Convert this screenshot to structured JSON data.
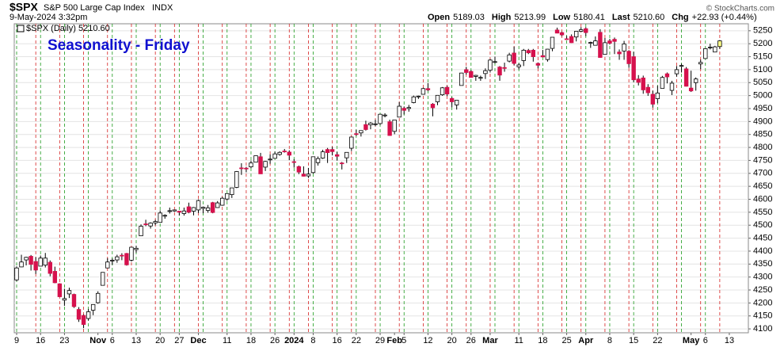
{
  "header": {
    "symbol": "$SPX",
    "name": "S&P 500 Large Cap Index",
    "exchange": "INDX",
    "timestamp": "9-May-2024 3:32pm",
    "stats": [
      {
        "label": "Open",
        "value": "5189.03"
      },
      {
        "label": "High",
        "value": "5213.99"
      },
      {
        "label": "Low",
        "value": "5180.41"
      },
      {
        "label": "Last",
        "value": "5210.60"
      },
      {
        "label": "Chg",
        "value": "+22.93 (+0.44%)"
      }
    ],
    "copyright": "© StockCharts.com"
  },
  "chart_data": {
    "type": "candlestick",
    "title": "Seasonality - Friday",
    "legend": "$SPX (Daily) 5210.60",
    "up_color": "#ffffff",
    "down_color": "#d6114d",
    "wick_color": "#000000",
    "highlight_last_color": "#ffff88",
    "week_start_color": "#1a9a1a",
    "week_end_color": "#d62020",
    "grid": true,
    "ylim": [
      4085,
      5277
    ],
    "yticks": [
      4100,
      4150,
      4200,
      4250,
      4300,
      4350,
      4400,
      4450,
      4500,
      4550,
      4600,
      4650,
      4700,
      4750,
      4800,
      4850,
      4900,
      4950,
      5000,
      5050,
      5100,
      5150,
      5200,
      5250
    ],
    "xticks": [
      {
        "value": "2023-10-09",
        "label": "9"
      },
      {
        "value": "2023-10-16",
        "label": "16"
      },
      {
        "value": "2023-10-23",
        "label": "23"
      },
      {
        "value": "2023-11-01",
        "label": "Nov"
      },
      {
        "value": "2023-11-06",
        "label": "6"
      },
      {
        "value": "2023-11-13",
        "label": "13"
      },
      {
        "value": "2023-11-20",
        "label": "20"
      },
      {
        "value": "2023-11-27",
        "label": "27"
      },
      {
        "value": "2023-12-01",
        "label": "Dec"
      },
      {
        "value": "2023-12-11",
        "label": "11"
      },
      {
        "value": "2023-12-18",
        "label": "18"
      },
      {
        "value": "2023-12-26",
        "label": "26"
      },
      {
        "value": "2024-01-02",
        "label": "2024"
      },
      {
        "value": "2024-01-08",
        "label": "8"
      },
      {
        "value": "2024-01-16",
        "label": "16"
      },
      {
        "value": "2024-01-22",
        "label": "22"
      },
      {
        "value": "2024-01-29",
        "label": "29"
      },
      {
        "value": "2024-02-01",
        "label": "Feb"
      },
      {
        "value": "2024-02-05",
        "label": "5"
      },
      {
        "value": "2024-02-12",
        "label": "12"
      },
      {
        "value": "2024-02-20",
        "label": "20"
      },
      {
        "value": "2024-02-26",
        "label": "26"
      },
      {
        "value": "2024-03-01",
        "label": "Mar"
      },
      {
        "value": "2024-03-11",
        "label": "11"
      },
      {
        "value": "2024-03-18",
        "label": "18"
      },
      {
        "value": "2024-03-25",
        "label": "25"
      },
      {
        "value": "2024-04-01",
        "label": "Apr"
      },
      {
        "value": "2024-04-08",
        "label": "8"
      },
      {
        "value": "2024-04-15",
        "label": "15"
      },
      {
        "value": "2024-04-22",
        "label": "22"
      },
      {
        "value": "2024-05-01",
        "label": "May"
      },
      {
        "value": "2024-05-06",
        "label": "6"
      },
      {
        "value": "2024-05-13",
        "label": "13"
      }
    ],
    "x": [
      "2023-10-09",
      "2023-10-10",
      "2023-10-11",
      "2023-10-12",
      "2023-10-13",
      "2023-10-16",
      "2023-10-17",
      "2023-10-18",
      "2023-10-19",
      "2023-10-20",
      "2023-10-23",
      "2023-10-24",
      "2023-10-25",
      "2023-10-26",
      "2023-10-27",
      "2023-10-30",
      "2023-10-31",
      "2023-11-01",
      "2023-11-02",
      "2023-11-03",
      "2023-11-06",
      "2023-11-07",
      "2023-11-08",
      "2023-11-09",
      "2023-11-10",
      "2023-11-13",
      "2023-11-14",
      "2023-11-15",
      "2023-11-16",
      "2023-11-17",
      "2023-11-20",
      "2023-11-21",
      "2023-11-22",
      "2023-11-24",
      "2023-11-27",
      "2023-11-28",
      "2023-11-29",
      "2023-11-30",
      "2023-12-01",
      "2023-12-04",
      "2023-12-05",
      "2023-12-06",
      "2023-12-07",
      "2023-12-08",
      "2023-12-11",
      "2023-12-12",
      "2023-12-13",
      "2023-12-14",
      "2023-12-15",
      "2023-12-18",
      "2023-12-19",
      "2023-12-20",
      "2023-12-21",
      "2023-12-22",
      "2023-12-26",
      "2023-12-27",
      "2023-12-28",
      "2023-12-29",
      "2024-01-02",
      "2024-01-03",
      "2024-01-04",
      "2024-01-05",
      "2024-01-08",
      "2024-01-09",
      "2024-01-10",
      "2024-01-11",
      "2024-01-12",
      "2024-01-16",
      "2024-01-17",
      "2024-01-18",
      "2024-01-19",
      "2024-01-22",
      "2024-01-23",
      "2024-01-24",
      "2024-01-25",
      "2024-01-26",
      "2024-01-29",
      "2024-01-30",
      "2024-01-31",
      "2024-02-01",
      "2024-02-02",
      "2024-02-05",
      "2024-02-06",
      "2024-02-07",
      "2024-02-08",
      "2024-02-09",
      "2024-02-12",
      "2024-02-13",
      "2024-02-14",
      "2024-02-15",
      "2024-02-16",
      "2024-02-20",
      "2024-02-21",
      "2024-02-22",
      "2024-02-23",
      "2024-02-26",
      "2024-02-27",
      "2024-02-28",
      "2024-02-29",
      "2024-03-01",
      "2024-03-04",
      "2024-03-05",
      "2024-03-06",
      "2024-03-07",
      "2024-03-08",
      "2024-03-11",
      "2024-03-12",
      "2024-03-13",
      "2024-03-14",
      "2024-03-15",
      "2024-03-18",
      "2024-03-19",
      "2024-03-20",
      "2024-03-21",
      "2024-03-22",
      "2024-03-25",
      "2024-03-26",
      "2024-03-27",
      "2024-03-28",
      "2024-04-01",
      "2024-04-02",
      "2024-04-03",
      "2024-04-04",
      "2024-04-05",
      "2024-04-08",
      "2024-04-09",
      "2024-04-10",
      "2024-04-11",
      "2024-04-12",
      "2024-04-15",
      "2024-04-16",
      "2024-04-17",
      "2024-04-18",
      "2024-04-19",
      "2024-04-22",
      "2024-04-23",
      "2024-04-24",
      "2024-04-25",
      "2024-04-26",
      "2024-04-29",
      "2024-04-30",
      "2024-05-01",
      "2024-05-02",
      "2024-05-03",
      "2024-05-06",
      "2024-05-07",
      "2024-05-08",
      "2024-05-09"
    ],
    "open": [
      4289,
      4339,
      4366,
      4380,
      4360,
      4342,
      4346,
      4357,
      4322,
      4274,
      4211,
      4235,
      4233,
      4175,
      4152,
      4140,
      4172,
      4201,
      4268,
      4335,
      4364,
      4366,
      4384,
      4391,
      4365,
      4406,
      4459,
      4505,
      4497,
      4509,
      4511,
      4538,
      4553,
      4555,
      4554,
      4545,
      4571,
      4554,
      4559,
      4565,
      4557,
      4587,
      4568,
      4577,
      4601,
      4618,
      4646,
      4721,
      4720,
      4725,
      4743,
      4764,
      4724,
      4753,
      4758,
      4773,
      4786,
      4782,
      4745,
      4726,
      4697,
      4690,
      4703,
      4741,
      4759,
      4792,
      4792,
      4772,
      4740,
      4760,
      4797,
      4853,
      4856,
      4888,
      4887,
      4888,
      4892,
      4925,
      4899,
      4862,
      4917,
      4951,
      4950,
      4973,
      4996,
      5005,
      5027,
      4967,
      4976,
      5003,
      5032,
      4989,
      4964,
      5039,
      5100,
      5093,
      5074,
      5067,
      5085,
      5098,
      5131,
      5110,
      5108,
      5133,
      5164,
      5111,
      5135,
      5174,
      5175,
      5124,
      5154,
      5139,
      5182,
      5253,
      5243,
      5219,
      5228,
      5226,
      5248,
      5258,
      5204,
      5194,
      5244,
      5159,
      5211,
      5217,
      5168,
      5172,
      5171,
      5150,
      5064,
      5068,
      5032,
      5005,
      4988,
      5028,
      5084,
      5020,
      5084,
      5114,
      5103,
      5029,
      5050,
      5122,
      5143,
      5187,
      5168,
      5189
    ],
    "high": [
      4341,
      4386,
      4378,
      4385,
      4377,
      4383,
      4393,
      4364,
      4340,
      4276,
      4255,
      4259,
      4236,
      4184,
      4156,
      4177,
      4195,
      4245,
      4319,
      4373,
      4372,
      4386,
      4392,
      4393,
      4415,
      4421,
      4503,
      4521,
      4511,
      4521,
      4557,
      4542,
      4568,
      4560,
      4555,
      4568,
      4587,
      4570,
      4599,
      4572,
      4578,
      4590,
      4593,
      4609,
      4623,
      4644,
      4709,
      4739,
      4725,
      4749,
      4768,
      4779,
      4748,
      4773,
      4784,
      4785,
      4794,
      4789,
      4755,
      4730,
      4727,
      4721,
      4764,
      4765,
      4791,
      4798,
      4802,
      4783,
      4744,
      4781,
      4842,
      4868,
      4866,
      4903,
      4898,
      4907,
      4929,
      4932,
      4907,
      4906,
      4975,
      4958,
      4964,
      5000,
      5000,
      5030,
      5048,
      4971,
      5002,
      5033,
      5038,
      4994,
      4983,
      5088,
      5111,
      5098,
      5080,
      5077,
      5105,
      5141,
      5150,
      5114,
      5127,
      5165,
      5189,
      5125,
      5180,
      5180,
      5180,
      5128,
      5176,
      5180,
      5225,
      5262,
      5246,
      5230,
      5236,
      5248,
      5264,
      5264,
      5208,
      5228,
      5256,
      5222,
      5219,
      5224,
      5178,
      5211,
      5175,
      5169,
      5079,
      5077,
      5044,
      5019,
      5038,
      5076,
      5089,
      5057,
      5114,
      5123,
      5110,
      5096,
      5070,
      5139,
      5183,
      5200,
      5192,
      5214
    ],
    "low": [
      4284,
      4338,
      4345,
      4325,
      4312,
      4342,
      4337,
      4303,
      4276,
      4223,
      4189,
      4219,
      4181,
      4127,
      4103,
      4132,
      4153,
      4197,
      4268,
      4334,
      4347,
      4355,
      4365,
      4344,
      4360,
      4394,
      4459,
      4496,
      4487,
      4500,
      4511,
      4525,
      4545,
      4552,
      4537,
      4537,
      4546,
      4538,
      4547,
      4546,
      4548,
      4546,
      4567,
      4575,
      4594,
      4605,
      4643,
      4694,
      4704,
      4720,
      4743,
      4698,
      4709,
      4737,
      4758,
      4768,
      4780,
      4751,
      4722,
      4697,
      4688,
      4682,
      4699,
      4730,
      4756,
      4740,
      4769,
      4749,
      4715,
      4740,
      4786,
      4844,
      4842,
      4865,
      4870,
      4882,
      4887,
      4916,
      4845,
      4851,
      4917,
      4927,
      4938,
      4970,
      4987,
      5004,
      5017,
      4920,
      4963,
      4999,
      4998,
      4955,
      4946,
      5039,
      5081,
      5069,
      5057,
      5057,
      5064,
      5089,
      5124,
      5057,
      5092,
      5128,
      5117,
      5101,
      5114,
      5160,
      5131,
      5105,
      5148,
      5131,
      5171,
      5240,
      5229,
      5216,
      5203,
      5209,
      5245,
      5229,
      5184,
      5194,
      5146,
      5158,
      5197,
      5160,
      5138,
      5138,
      5107,
      5052,
      5039,
      5007,
      4999,
      4954,
      4971,
      5028,
      5047,
      5002,
      5073,
      5089,
      5035,
      5014,
      5019,
      5102,
      5143,
      5178,
      5167,
      5180
    ],
    "close": [
      4335,
      4358,
      4376,
      4349,
      4327,
      4373,
      4373,
      4314,
      4278,
      4224,
      4217,
      4248,
      4186,
      4137,
      4117,
      4166,
      4194,
      4237,
      4318,
      4358,
      4365,
      4378,
      4383,
      4347,
      4415,
      4411,
      4496,
      4502,
      4508,
      4514,
      4547,
      4538,
      4556,
      4559,
      4550,
      4555,
      4550,
      4568,
      4595,
      4569,
      4567,
      4549,
      4586,
      4604,
      4622,
      4644,
      4707,
      4720,
      4719,
      4740,
      4768,
      4698,
      4746,
      4755,
      4775,
      4781,
      4783,
      4770,
      4743,
      4705,
      4689,
      4697,
      4764,
      4757,
      4783,
      4780,
      4784,
      4766,
      4739,
      4781,
      4840,
      4850,
      4865,
      4869,
      4894,
      4891,
      4928,
      4925,
      4846,
      4906,
      4959,
      4943,
      4954,
      4995,
      4998,
      5027,
      5022,
      4953,
      5001,
      5030,
      5006,
      4976,
      4982,
      5087,
      5089,
      5070,
      5078,
      5070,
      5096,
      5137,
      5131,
      5079,
      5105,
      5157,
      5124,
      5118,
      5175,
      5165,
      5150,
      5117,
      5149,
      5179,
      5225,
      5241,
      5234,
      5218,
      5204,
      5248,
      5254,
      5243,
      5205,
      5211,
      5147,
      5204,
      5202,
      5209,
      5161,
      5199,
      5123,
      5061,
      5051,
      5022,
      5011,
      4967,
      5010,
      5070,
      5072,
      5048,
      5100,
      5116,
      5036,
      5018,
      5064,
      5128,
      5181,
      5187,
      5188,
      5211
    ]
  }
}
